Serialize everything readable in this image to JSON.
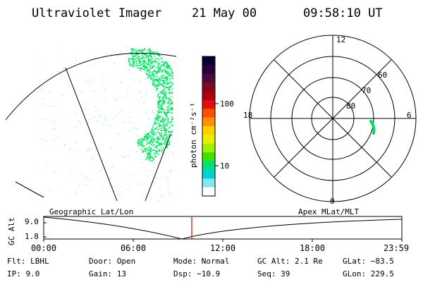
{
  "header": {
    "instrument": "Ultraviolet Imager",
    "date": "21 May 00",
    "time": "09:58:10 UT"
  },
  "colorbar": {
    "label": "photon cm⁻²s⁻¹",
    "ticks": [
      "100",
      "10"
    ],
    "colors": [
      "#000030",
      "#280040",
      "#4a0a40",
      "#7a0a20",
      "#b00010",
      "#e01010",
      "#ff5000",
      "#ff9000",
      "#ffd000",
      "#e8f000",
      "#a0f000",
      "#40e000",
      "#00e080",
      "#00d0d0",
      "#80e8f0",
      "#ffffff"
    ]
  },
  "polar_plot": {
    "mlt_labels": {
      "top": "12",
      "left": "18",
      "right": "6",
      "bottom": "0"
    },
    "lat_labels": [
      "60",
      "70",
      "80"
    ],
    "spot_color": "#00e060"
  },
  "image_colors": {
    "aurora_core": "#00e060",
    "aurora_edge": "#60f0a0",
    "background_specks": "#90e8f0"
  },
  "timeline": {
    "ylabel": "GC Alt",
    "ytick_top": "9.0",
    "ytick_bottom": "1.8",
    "left_label": "Geographic Lat/Lon",
    "right_label": "Apex MLat/MLT",
    "x_ticks": [
      "00:00",
      "06:00",
      "12:00",
      "18:00",
      "23:59"
    ],
    "marker_color": "#d00000"
  },
  "info": {
    "col1": [
      "Flt: LBHL",
      "IP:  9.0"
    ],
    "col2": [
      "Door: Open",
      "Gain: 13"
    ],
    "col3": [
      "Mode: Normal",
      "Dsp:  −10.9"
    ],
    "col4": [
      "GC Alt: 2.1 Re",
      "Seq: 39"
    ],
    "col5": [
      "GLat: −83.5",
      "GLon: 229.5"
    ]
  }
}
